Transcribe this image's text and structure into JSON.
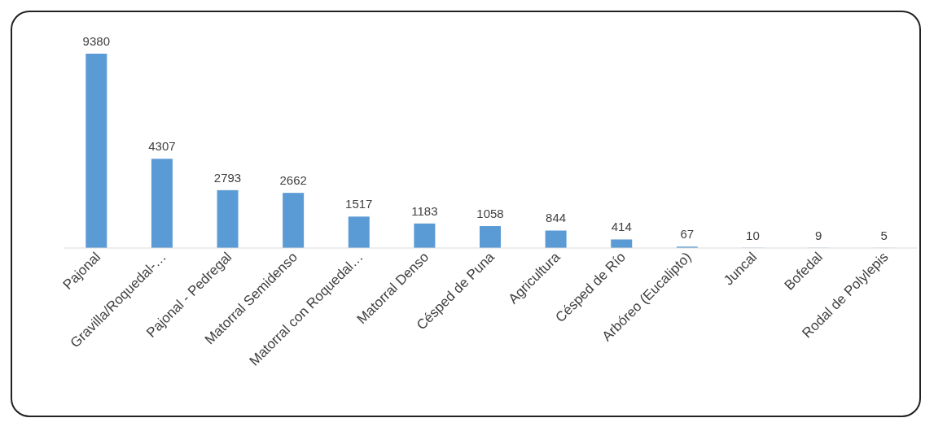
{
  "chart_data": {
    "type": "bar",
    "categories": [
      "Pajonal",
      "Gravilla/Roquedal-…",
      "Pajonal - Pedregal",
      "Matorral Semidenso",
      "Matorral con Roquedal…",
      "Matorral Denso",
      "Césped de Puna",
      "Agricultura",
      "Césped de Río",
      "Arbóreo (Eucalipto)",
      "Juncal",
      "Bofedal",
      "Rodal de Polylepis"
    ],
    "values": [
      9380,
      4307,
      2793,
      2662,
      1517,
      1183,
      1058,
      844,
      414,
      67,
      10,
      9,
      5
    ],
    "color": "#5b9bd5",
    "data_labels": true
  }
}
